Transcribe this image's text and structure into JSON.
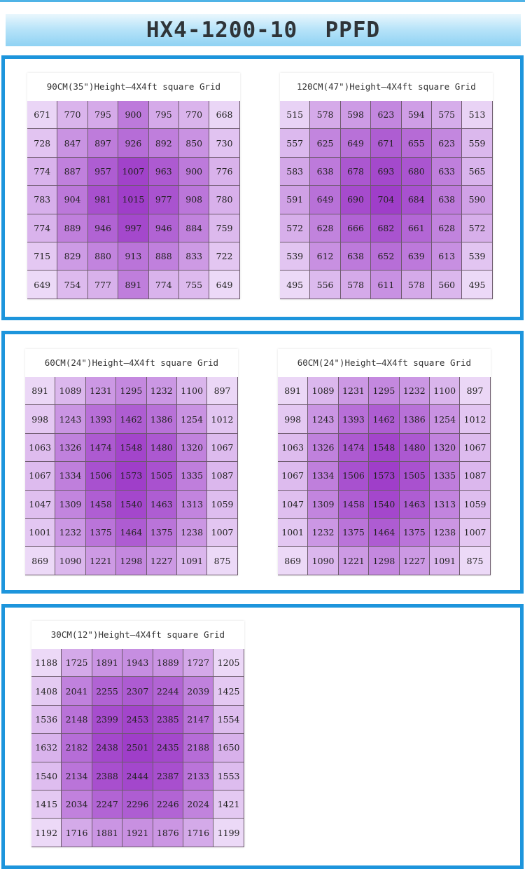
{
  "header": {
    "title": "HX4-1200-10  PPFD"
  },
  "colors": {
    "panel_border": "#1d95dc",
    "cell_low": "#ecd9f7",
    "cell_high": "#9f3ec9"
  },
  "chart_data": [
    {
      "type": "heatmap",
      "title": "90CM(35\")Height—4X4ft square Grid",
      "values": [
        [
          671,
          770,
          795,
          900,
          795,
          770,
          668
        ],
        [
          728,
          847,
          897,
          926,
          892,
          850,
          730
        ],
        [
          774,
          887,
          957,
          1007,
          963,
          900,
          776
        ],
        [
          783,
          904,
          981,
          1015,
          977,
          908,
          780
        ],
        [
          774,
          889,
          946,
          997,
          946,
          884,
          759
        ],
        [
          715,
          829,
          880,
          913,
          888,
          833,
          722
        ],
        [
          649,
          754,
          777,
          891,
          774,
          755,
          649
        ]
      ]
    },
    {
      "type": "heatmap",
      "title": "120CM(47\")Height—4X4ft square Grid",
      "values": [
        [
          515,
          578,
          598,
          623,
          594,
          575,
          513
        ],
        [
          557,
          625,
          649,
          671,
          655,
          623,
          559
        ],
        [
          583,
          638,
          678,
          693,
          680,
          633,
          565
        ],
        [
          591,
          649,
          690,
          704,
          684,
          638,
          590
        ],
        [
          572,
          628,
          666,
          682,
          661,
          628,
          572
        ],
        [
          539,
          612,
          638,
          652,
          639,
          613,
          539
        ],
        [
          495,
          556,
          578,
          611,
          578,
          560,
          495
        ]
      ]
    },
    {
      "type": "heatmap",
      "title": "60CM(24\")Height—4X4ft square Grid",
      "values": [
        [
          891,
          1089,
          1231,
          1295,
          1232,
          1100,
          897
        ],
        [
          998,
          1243,
          1393,
          1462,
          1386,
          1254,
          1012
        ],
        [
          1063,
          1326,
          1474,
          1548,
          1480,
          1320,
          1067
        ],
        [
          1067,
          1334,
          1506,
          1573,
          1505,
          1335,
          1087
        ],
        [
          1047,
          1309,
          1458,
          1540,
          1463,
          1313,
          1059
        ],
        [
          1001,
          1232,
          1375,
          1464,
          1375,
          1238,
          1007
        ],
        [
          869,
          1090,
          1221,
          1298,
          1227,
          1091,
          875
        ]
      ]
    },
    {
      "type": "heatmap",
      "title": "60CM(24\")Height—4X4ft square Grid",
      "values": [
        [
          891,
          1089,
          1231,
          1295,
          1232,
          1100,
          897
        ],
        [
          998,
          1243,
          1393,
          1462,
          1386,
          1254,
          1012
        ],
        [
          1063,
          1326,
          1474,
          1548,
          1480,
          1320,
          1067
        ],
        [
          1067,
          1334,
          1506,
          1573,
          1505,
          1335,
          1087
        ],
        [
          1047,
          1309,
          1458,
          1540,
          1463,
          1313,
          1059
        ],
        [
          1001,
          1232,
          1375,
          1464,
          1375,
          1238,
          1007
        ],
        [
          869,
          1090,
          1221,
          1298,
          1227,
          1091,
          875
        ]
      ]
    },
    {
      "type": "heatmap",
      "title": "30CM(12\")Height—4X4ft square Grid",
      "values": [
        [
          1188,
          1725,
          1891,
          1943,
          1889,
          1727,
          1205
        ],
        [
          1408,
          2041,
          2255,
          2307,
          2244,
          2039,
          1425
        ],
        [
          1536,
          2148,
          2399,
          2453,
          2385,
          2147,
          1554
        ],
        [
          1632,
          2182,
          2438,
          2501,
          2435,
          2188,
          1650
        ],
        [
          1540,
          2134,
          2388,
          2444,
          2387,
          2133,
          1553
        ],
        [
          1415,
          2034,
          2247,
          2296,
          2246,
          2024,
          1421
        ],
        [
          1192,
          1716,
          1881,
          1921,
          1876,
          1716,
          1199
        ]
      ]
    }
  ]
}
